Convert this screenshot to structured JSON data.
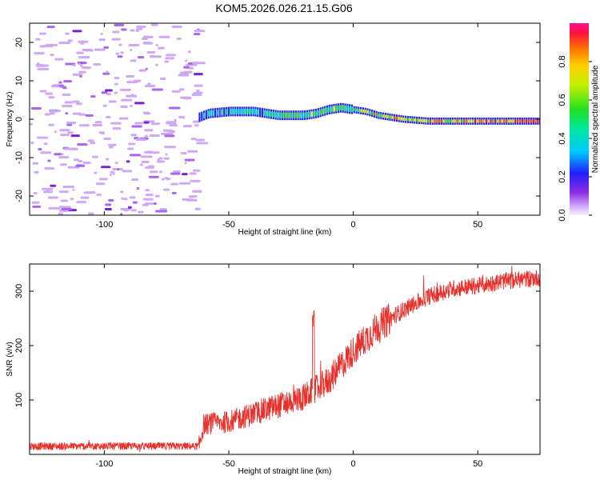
{
  "title": "KOM5.2026.026.21.15.G06",
  "chart_data": [
    {
      "type": "heatmap",
      "name": "spectrogram",
      "xlabel": "Height of straight line (km)",
      "ylabel": "Frequency (Hz)",
      "xlim": [
        -130,
        75
      ],
      "ylim": [
        -25,
        25
      ],
      "xticks": [
        -100,
        -50,
        0,
        50
      ],
      "yticks": [
        20,
        10,
        0,
        -10,
        -20
      ],
      "noise_region_x": [
        -130,
        -62
      ],
      "ridge": {
        "x": [
          -62,
          -58,
          -50,
          -40,
          -30,
          -20,
          -15,
          -10,
          -5,
          0,
          5,
          10,
          20,
          30,
          40,
          50,
          60,
          75
        ],
        "freq": [
          0.5,
          1.5,
          2.0,
          2.0,
          1.0,
          1.0,
          1.5,
          2.5,
          3.0,
          2.5,
          2.0,
          1.0,
          0.0,
          -0.5,
          -0.5,
          -0.5,
          -0.5,
          -0.5
        ]
      },
      "colorbar": {
        "label": "Normalized spectral amplitude",
        "range": [
          0,
          1
        ],
        "ticks": [
          "0.0",
          "0.2",
          "0.4",
          "0.6",
          "0.8"
        ]
      }
    },
    {
      "type": "line",
      "name": "snr",
      "xlabel": "Height of straight line (km)",
      "ylabel": "SNR (v/v)",
      "xlim": [
        -130,
        75
      ],
      "ylim": [
        0,
        350
      ],
      "xticks": [
        -100,
        -50,
        0,
        50
      ],
      "yticks": [
        100,
        200,
        300
      ],
      "color": "#e8302c",
      "trend": {
        "x": [
          -130,
          -62,
          -60,
          -50,
          -40,
          -30,
          -20,
          -10,
          0,
          10,
          20,
          30,
          40,
          50,
          60,
          75
        ],
        "y": [
          15,
          15,
          55,
          60,
          75,
          90,
          105,
          135,
          190,
          235,
          265,
          290,
          305,
          310,
          318,
          325
        ]
      },
      "spike": {
        "x": -16,
        "y": 265
      }
    }
  ]
}
